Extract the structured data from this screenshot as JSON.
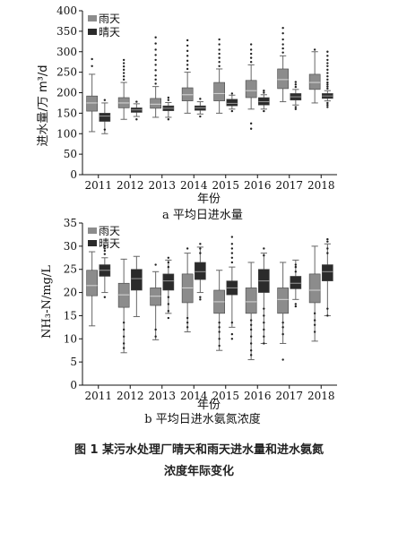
{
  "chart_data": [
    {
      "type": "box",
      "caption": "a 平均日进水量",
      "xlabel": "年份",
      "ylabel": "进水量/万 m³/d",
      "ylim": [
        0,
        400
      ],
      "yticks": [
        0,
        50,
        100,
        150,
        200,
        250,
        300,
        350,
        400
      ],
      "categories": [
        "2011",
        "2012",
        "2013",
        "2014",
        "2015",
        "2016",
        "2017",
        "2018"
      ],
      "legend": "top-left",
      "series": [
        {
          "name": "雨天",
          "color": "#8c8c8c",
          "boxes": [
            {
              "min": 105,
              "q1": 155,
              "median": 175,
              "q3": 192,
              "max": 245,
              "outliers": [
                265,
                282
              ]
            },
            {
              "min": 135,
              "q1": 163,
              "median": 175,
              "q3": 188,
              "max": 225,
              "outliers": [
                232,
                240,
                248,
                256,
                264,
                272,
                280
              ]
            },
            {
              "min": 140,
              "q1": 162,
              "median": 172,
              "q3": 186,
              "max": 215,
              "outliers": [
                222,
                232,
                242,
                255,
                268,
                280,
                292,
                305,
                320,
                335
              ]
            },
            {
              "min": 150,
              "q1": 180,
              "median": 195,
              "q3": 212,
              "max": 250,
              "outliers": [
                258,
                268,
                278,
                290,
                302,
                315,
                328
              ]
            },
            {
              "min": 150,
              "q1": 180,
              "median": 198,
              "q3": 225,
              "max": 258,
              "outliers": [
                265,
                275,
                285,
                295,
                305,
                318,
                330
              ]
            },
            {
              "min": 160,
              "q1": 188,
              "median": 205,
              "q3": 230,
              "max": 268,
              "outliers": [
                112,
                125,
                275,
                285,
                295,
                305,
                318
              ]
            },
            {
              "min": 178,
              "q1": 210,
              "median": 232,
              "q3": 258,
              "max": 290,
              "outliers": [
                298,
                308,
                318,
                330,
                345,
                358
              ]
            },
            {
              "min": 175,
              "q1": 208,
              "median": 225,
              "q3": 245,
              "max": 300,
              "outliers": [
                305
              ]
            }
          ]
        },
        {
          "name": "晴天",
          "color": "#2b2b2b",
          "boxes": [
            {
              "min": 100,
              "q1": 130,
              "median": 143,
              "q3": 150,
              "max": 175,
              "outliers": [
                110,
                182
              ]
            },
            {
              "min": 142,
              "q1": 152,
              "median": 158,
              "q3": 163,
              "max": 173,
              "outliers": [
                135,
                178
              ]
            },
            {
              "min": 140,
              "q1": 156,
              "median": 162,
              "q3": 168,
              "max": 176,
              "outliers": [
                135,
                182,
                188
              ]
            },
            {
              "min": 148,
              "q1": 157,
              "median": 163,
              "q3": 168,
              "max": 178,
              "outliers": [
                142,
                185
              ]
            },
            {
              "min": 160,
              "q1": 168,
              "median": 174,
              "q3": 184,
              "max": 194,
              "outliers": [
                155,
                198
              ]
            },
            {
              "min": 160,
              "q1": 170,
              "median": 178,
              "q3": 188,
              "max": 195,
              "outliers": [
                155,
                200,
                205
              ]
            },
            {
              "min": 170,
              "q1": 182,
              "median": 190,
              "q3": 198,
              "max": 208,
              "outliers": [
                160,
                165,
                214,
                220,
                226
              ]
            },
            {
              "min": 180,
              "q1": 186,
              "median": 192,
              "q3": 198,
              "max": 205,
              "outliers": [
                165,
                170,
                175,
                210,
                215,
                220,
                225,
                232,
                240,
                248,
                256,
                265,
                272,
                280,
                290,
                300
              ]
            }
          ]
        }
      ]
    },
    {
      "type": "box",
      "caption": "b 平均日进水氨氮浓度",
      "xlabel": "年份",
      "ylabel": "NH₃-N/mg/L",
      "ylim": [
        0,
        35
      ],
      "yticks": [
        0,
        5,
        10,
        15,
        20,
        25,
        30,
        35
      ],
      "categories": [
        "2011",
        "2012",
        "2013",
        "2014",
        "2015",
        "2016",
        "2017",
        "2018"
      ],
      "legend": "top-left",
      "series": [
        {
          "name": "雨天",
          "color": "#8c8c8c",
          "boxes": [
            {
              "min": 12.8,
              "q1": 19.3,
              "median": 21.5,
              "q3": 24.8,
              "max": 28.8,
              "outliers": []
            },
            {
              "min": 7,
              "q1": 16.8,
              "median": 19.5,
              "q3": 22,
              "max": 27.2,
              "outliers": [
                8,
                9,
                10.5,
                12,
                13.5
              ]
            },
            {
              "min": 9.8,
              "q1": 17.2,
              "median": 19.2,
              "q3": 21,
              "max": 24.5,
              "outliers": [
                10.5,
                12,
                26
              ]
            },
            {
              "min": 11.5,
              "q1": 17.8,
              "median": 21,
              "q3": 24,
              "max": 28.5,
              "outliers": [
                12.5,
                13.5,
                14.5,
                29.5
              ]
            },
            {
              "min": 7.5,
              "q1": 15.5,
              "median": 18,
              "q3": 20.5,
              "max": 24.8,
              "outliers": [
                8.5,
                10,
                11.5,
                12.5,
                13.5
              ]
            },
            {
              "min": 5.5,
              "q1": 15.5,
              "median": 18,
              "q3": 21,
              "max": 26.5,
              "outliers": [
                6.5,
                7.5,
                9,
                10.5,
                12,
                13,
                14
              ]
            },
            {
              "min": 9,
              "q1": 15.5,
              "median": 18.5,
              "q3": 21,
              "max": 26.5,
              "outliers": [
                5.5,
                11,
                12.5,
                13.5
              ]
            },
            {
              "min": 9.5,
              "q1": 17.8,
              "median": 20.5,
              "q3": 24,
              "max": 30,
              "outliers": [
                11.5,
                13,
                14,
                15.5
              ]
            }
          ]
        },
        {
          "name": "晴天",
          "color": "#2b2b2b",
          "boxes": [
            {
              "min": 20,
              "q1": 23.5,
              "median": 24.8,
              "q3": 26,
              "max": 27.5,
              "outliers": [
                19,
                28.3,
                29,
                29.5,
                30
              ]
            },
            {
              "min": 14.8,
              "q1": 20.5,
              "median": 23,
              "q3": 25,
              "max": 27.8,
              "outliers": []
            },
            {
              "min": 15.5,
              "q1": 20.5,
              "median": 22.5,
              "q3": 24,
              "max": 27,
              "outliers": [
                14.5,
                16,
                17.5,
                19,
                25.5,
                26.5,
                27.5
              ]
            },
            {
              "min": 20,
              "q1": 22.8,
              "median": 24.5,
              "q3": 26.5,
              "max": 29.8,
              "outliers": [
                19,
                18.5,
                28.5,
                29.5,
                30.5
              ]
            },
            {
              "min": 12.5,
              "q1": 19.5,
              "median": 21,
              "q3": 22.5,
              "max": 25.5,
              "outliers": [
                11,
                10,
                13.5,
                26.5,
                27.5,
                28.5,
                29.5,
                30.5,
                32
              ]
            },
            {
              "min": 9,
              "q1": 20,
              "median": 22.5,
              "q3": 25,
              "max": 28.5,
              "outliers": [
                9,
                10.5,
                12,
                13.5,
                15,
                16.5,
                28,
                29.5
              ]
            },
            {
              "min": 18.5,
              "q1": 20.8,
              "median": 22,
              "q3": 23.5,
              "max": 27,
              "outliers": [
                17,
                17.5,
                24.5,
                25.5,
                26
              ]
            },
            {
              "min": 15,
              "q1": 22.5,
              "median": 24.5,
              "q3": 26,
              "max": 30.5,
              "outliers": [
                15,
                16.5,
                28.5,
                29.5,
                31,
                31.5
              ]
            }
          ]
        }
      ]
    }
  ],
  "figure_caption": {
    "line1": "图 1   某污水处理厂晴天和雨天进水量和进水氨氮",
    "line2": "浓度年际变化"
  }
}
